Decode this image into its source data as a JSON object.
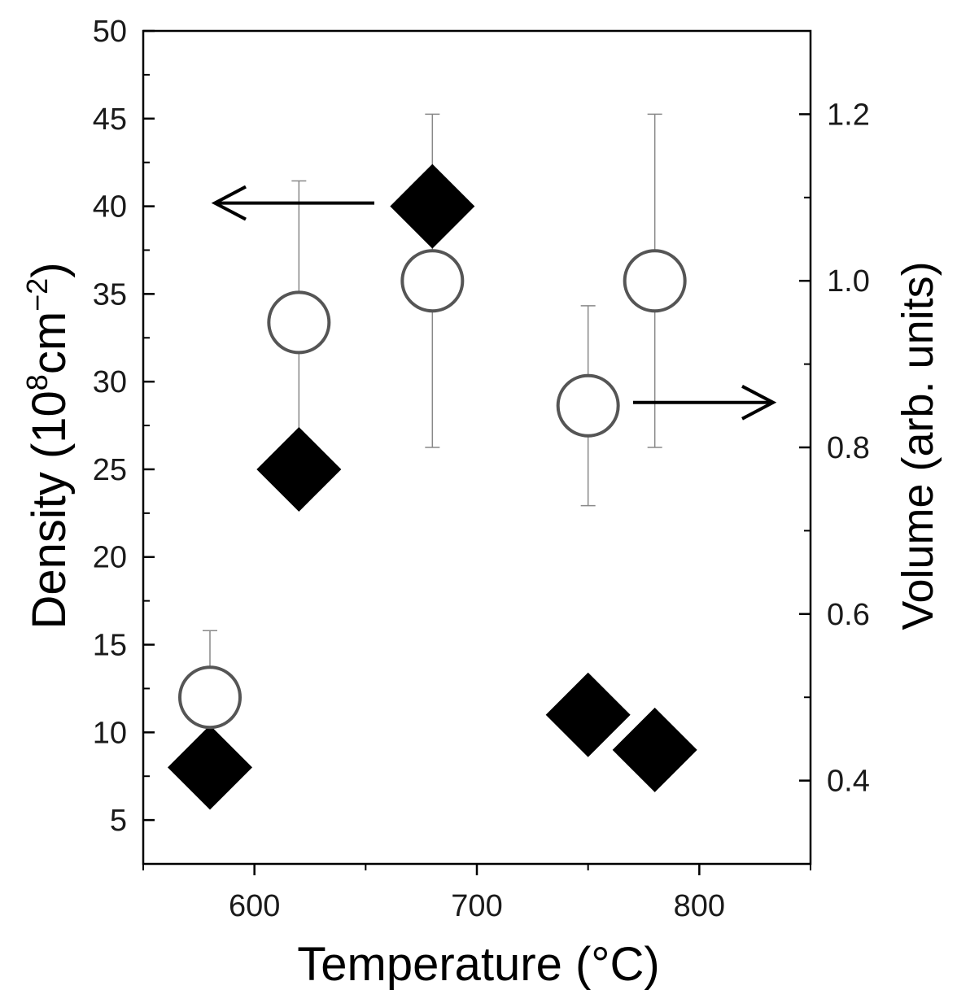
{
  "chart_data": {
    "type": "scatter",
    "x": [
      580,
      620,
      680,
      750,
      780
    ],
    "xlabel": "Temperature (°C)",
    "xlim": [
      550,
      850
    ],
    "xticks": [
      600,
      700,
      800
    ],
    "ylabel": {
      "text": "Density (10",
      "sup1": "8",
      "mid": "cm",
      "sup2": "−2",
      "end": ")"
    },
    "ylim": [
      2.5,
      50
    ],
    "yticks": [
      5,
      10,
      15,
      20,
      25,
      30,
      35,
      40,
      45,
      50
    ],
    "y2label": "Volume (arb. units)",
    "y2lim": [
      0.3,
      1.3
    ],
    "y2ticks": [
      0.4,
      0.6,
      0.8,
      1.0,
      1.2
    ],
    "y2tick_labels": [
      "0.4",
      "0.6",
      "0.8",
      "1.0",
      "1.2"
    ],
    "series": [
      {
        "name": "Density",
        "axis": "left",
        "marker": "diamond",
        "color": "#000000",
        "x": [
          580,
          620,
          680,
          750,
          780
        ],
        "values": [
          8,
          25,
          40,
          11,
          9
        ]
      },
      {
        "name": "Volume",
        "axis": "right",
        "marker": "open-circle",
        "color": "#555555",
        "x": [
          580,
          620,
          680,
          750,
          780
        ],
        "values": [
          0.5,
          0.95,
          1.0,
          0.85,
          1.0
        ],
        "err_low": [
          0.42,
          0.78,
          0.8,
          0.73,
          0.8
        ],
        "err_high": [
          0.58,
          1.12,
          1.2,
          0.97,
          1.2
        ]
      }
    ],
    "annotations": [
      {
        "type": "arrow",
        "direction": "left",
        "points_to": "left axis",
        "near_series": "Density"
      },
      {
        "type": "arrow",
        "direction": "right",
        "points_to": "right axis",
        "near_series": "Volume"
      }
    ]
  }
}
